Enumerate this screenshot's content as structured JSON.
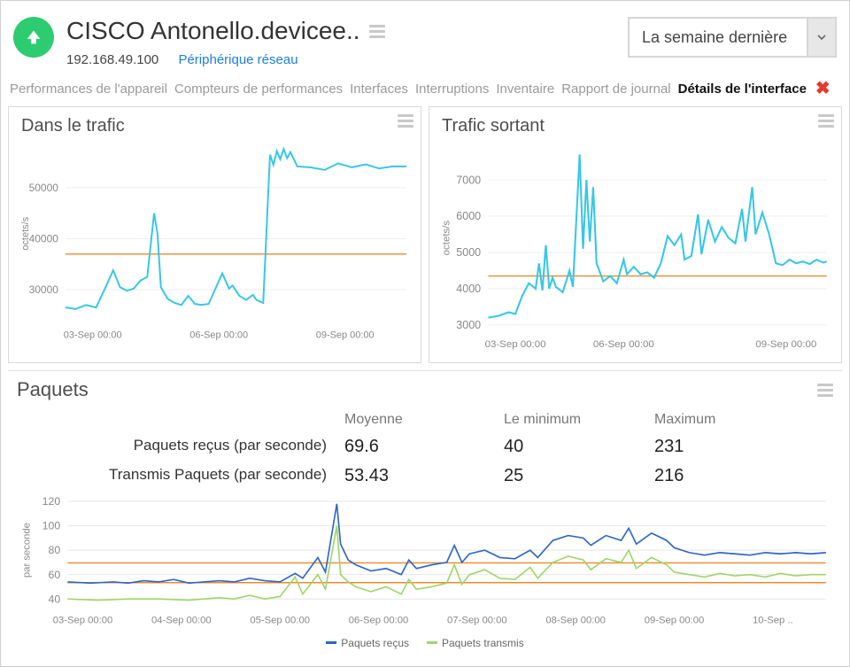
{
  "header": {
    "status_color": "#2ecc71",
    "arrow_color": "#ffffff",
    "title": "CISCO Antonello.devicee..",
    "ip": "192.168.49.100",
    "device_link": "Périphérique réseau",
    "range_selected": "La semaine dernière"
  },
  "tabs": {
    "items": [
      "Performances de l'appareil",
      "Compteurs de performances",
      "Interfaces",
      "Interruptions",
      "Inventaire",
      "Rapport de journal",
      "Détails de l'interface"
    ],
    "active_index": 6
  },
  "chart_in": {
    "type": "line",
    "title": "Dans le trafic",
    "ylabel": "octets/s",
    "line_color": "#38c7e6",
    "threshold_color": "#e88b2c",
    "background_color": "#ffffff",
    "grid_color": "#eeeeee",
    "axis_text_color": "#888888",
    "line_width": 2,
    "threshold_value": 37000,
    "ylim": [
      24000,
      58000
    ],
    "ytick_values": [
      30000,
      40000,
      50000
    ],
    "ytick_labels": [
      "30000",
      "40000",
      "50000"
    ],
    "xtick_positions": [
      0.08,
      0.45,
      0.82
    ],
    "xtick_labels": [
      "03-Sep 00:00",
      "06-Sep 00:00",
      "09-Sep 00:00"
    ],
    "series": [
      [
        0.0,
        26500
      ],
      [
        0.03,
        26200
      ],
      [
        0.06,
        27000
      ],
      [
        0.09,
        26500
      ],
      [
        0.12,
        30800
      ],
      [
        0.14,
        33800
      ],
      [
        0.16,
        30500
      ],
      [
        0.18,
        29800
      ],
      [
        0.2,
        30200
      ],
      [
        0.22,
        31800
      ],
      [
        0.24,
        32500
      ],
      [
        0.26,
        45000
      ],
      [
        0.27,
        41000
      ],
      [
        0.28,
        30500
      ],
      [
        0.3,
        28200
      ],
      [
        0.32,
        27400
      ],
      [
        0.34,
        27000
      ],
      [
        0.36,
        28800
      ],
      [
        0.38,
        27200
      ],
      [
        0.4,
        27000
      ],
      [
        0.42,
        27200
      ],
      [
        0.44,
        30200
      ],
      [
        0.46,
        33200
      ],
      [
        0.48,
        30200
      ],
      [
        0.49,
        30800
      ],
      [
        0.51,
        28800
      ],
      [
        0.53,
        28000
      ],
      [
        0.55,
        29000
      ],
      [
        0.56,
        28000
      ],
      [
        0.58,
        27400
      ],
      [
        0.6,
        56500
      ],
      [
        0.61,
        54500
      ],
      [
        0.62,
        57200
      ],
      [
        0.63,
        55600
      ],
      [
        0.64,
        57600
      ],
      [
        0.65,
        55800
      ],
      [
        0.66,
        57000
      ],
      [
        0.68,
        54200
      ],
      [
        0.72,
        54000
      ],
      [
        0.76,
        53500
      ],
      [
        0.8,
        54800
      ],
      [
        0.84,
        54000
      ],
      [
        0.88,
        54600
      ],
      [
        0.92,
        53800
      ],
      [
        0.96,
        54200
      ],
      [
        1.0,
        54200
      ]
    ]
  },
  "chart_out": {
    "type": "line",
    "title": "Trafic sortant",
    "ylabel": "octets/s",
    "line_color": "#38c7e6",
    "threshold_color": "#e88b2c",
    "background_color": "#ffffff",
    "grid_color": "#eeeeee",
    "axis_text_color": "#888888",
    "line_width": 2,
    "threshold_value": 4350,
    "ylim": [
      2900,
      7900
    ],
    "ytick_values": [
      3000,
      4000,
      5000,
      6000,
      7000
    ],
    "ytick_labels": [
      "3000",
      "4000",
      "5000",
      "6000",
      "7000"
    ],
    "xtick_positions": [
      0.08,
      0.4,
      0.88
    ],
    "xtick_labels": [
      "03-Sep 00:00",
      "06-Sep 00:00",
      "09-Sep 00:00"
    ],
    "series": [
      [
        0.0,
        3200
      ],
      [
        0.03,
        3250
      ],
      [
        0.06,
        3350
      ],
      [
        0.08,
        3300
      ],
      [
        0.1,
        3800
      ],
      [
        0.12,
        4150
      ],
      [
        0.14,
        4000
      ],
      [
        0.15,
        4700
      ],
      [
        0.16,
        3950
      ],
      [
        0.17,
        5200
      ],
      [
        0.18,
        4000
      ],
      [
        0.19,
        4300
      ],
      [
        0.2,
        4050
      ],
      [
        0.22,
        3900
      ],
      [
        0.24,
        4500
      ],
      [
        0.25,
        4050
      ],
      [
        0.27,
        7700
      ],
      [
        0.28,
        5100
      ],
      [
        0.29,
        7000
      ],
      [
        0.3,
        5300
      ],
      [
        0.31,
        6800
      ],
      [
        0.32,
        4700
      ],
      [
        0.34,
        4200
      ],
      [
        0.36,
        4350
      ],
      [
        0.38,
        4150
      ],
      [
        0.4,
        4800
      ],
      [
        0.41,
        4400
      ],
      [
        0.43,
        4600
      ],
      [
        0.45,
        4400
      ],
      [
        0.47,
        4450
      ],
      [
        0.49,
        4300
      ],
      [
        0.51,
        4700
      ],
      [
        0.53,
        5450
      ],
      [
        0.55,
        5200
      ],
      [
        0.57,
        5500
      ],
      [
        0.58,
        4800
      ],
      [
        0.6,
        4900
      ],
      [
        0.62,
        6050
      ],
      [
        0.63,
        4950
      ],
      [
        0.65,
        5900
      ],
      [
        0.67,
        5300
      ],
      [
        0.69,
        5700
      ],
      [
        0.71,
        5400
      ],
      [
        0.73,
        5250
      ],
      [
        0.75,
        6200
      ],
      [
        0.76,
        5300
      ],
      [
        0.78,
        6800
      ],
      [
        0.79,
        5500
      ],
      [
        0.81,
        6100
      ],
      [
        0.83,
        5500
      ],
      [
        0.85,
        4700
      ],
      [
        0.87,
        4650
      ],
      [
        0.89,
        4800
      ],
      [
        0.91,
        4700
      ],
      [
        0.93,
        4750
      ],
      [
        0.95,
        4680
      ],
      [
        0.97,
        4800
      ],
      [
        0.99,
        4720
      ],
      [
        1.0,
        4750
      ]
    ]
  },
  "packets": {
    "title": "Paquets",
    "columns": [
      "Moyenne",
      "Le minimum",
      "Maximum"
    ],
    "rows": [
      {
        "label": "Paquets reçus (par seconde)",
        "values": [
          "69.6",
          "40",
          "231"
        ]
      },
      {
        "label": "Transmis Paquets (par seconde)",
        "values": [
          "53.43",
          "25",
          "216"
        ]
      }
    ],
    "chart": {
      "type": "line",
      "ylabel": "par seconde",
      "line_width": 1.6,
      "background_color": "#ffffff",
      "grid_color": "#e6e6e6",
      "axis_text_color": "#888888",
      "threshold_color": "#e88b2c",
      "thresholds": [
        69.6,
        53.4
      ],
      "ylim": [
        35,
        125
      ],
      "ytick_values": [
        40,
        60,
        80,
        100,
        120
      ],
      "ytick_labels": [
        "40",
        "60",
        "80",
        "100",
        "120"
      ],
      "xtick_positions": [
        0.02,
        0.15,
        0.28,
        0.41,
        0.54,
        0.67,
        0.8,
        0.93
      ],
      "xtick_labels": [
        "03-Sep 00:00",
        "04-Sep 00:00",
        "05-Sep 00:00",
        "06-Sep 00:00",
        "07-Sep 00:00",
        "08-Sep 00:00",
        "09-Sep 00:00",
        "10-Sep .."
      ],
      "series_recv": {
        "color": "#2e66c6",
        "legend": "Paquets reçus",
        "points": [
          [
            0.0,
            54
          ],
          [
            0.03,
            53
          ],
          [
            0.06,
            54
          ],
          [
            0.08,
            53
          ],
          [
            0.1,
            55
          ],
          [
            0.12,
            54
          ],
          [
            0.14,
            56
          ],
          [
            0.16,
            53
          ],
          [
            0.18,
            54
          ],
          [
            0.2,
            55
          ],
          [
            0.22,
            54
          ],
          [
            0.24,
            57
          ],
          [
            0.26,
            55
          ],
          [
            0.28,
            54
          ],
          [
            0.3,
            61
          ],
          [
            0.31,
            57
          ],
          [
            0.33,
            74
          ],
          [
            0.34,
            62
          ],
          [
            0.355,
            118
          ],
          [
            0.36,
            85
          ],
          [
            0.37,
            72
          ],
          [
            0.38,
            68
          ],
          [
            0.4,
            63
          ],
          [
            0.42,
            65
          ],
          [
            0.44,
            60
          ],
          [
            0.45,
            72
          ],
          [
            0.46,
            65
          ],
          [
            0.48,
            68
          ],
          [
            0.5,
            70
          ],
          [
            0.51,
            84
          ],
          [
            0.52,
            70
          ],
          [
            0.53,
            77
          ],
          [
            0.55,
            80
          ],
          [
            0.57,
            74
          ],
          [
            0.59,
            73
          ],
          [
            0.61,
            80
          ],
          [
            0.62,
            74
          ],
          [
            0.64,
            88
          ],
          [
            0.66,
            92
          ],
          [
            0.68,
            90
          ],
          [
            0.69,
            84
          ],
          [
            0.71,
            92
          ],
          [
            0.73,
            88
          ],
          [
            0.74,
            98
          ],
          [
            0.75,
            85
          ],
          [
            0.77,
            94
          ],
          [
            0.79,
            88
          ],
          [
            0.8,
            82
          ],
          [
            0.82,
            78
          ],
          [
            0.84,
            76
          ],
          [
            0.86,
            78
          ],
          [
            0.88,
            77
          ],
          [
            0.9,
            76
          ],
          [
            0.92,
            78
          ],
          [
            0.94,
            77
          ],
          [
            0.96,
            78
          ],
          [
            0.98,
            77
          ],
          [
            1.0,
            78
          ]
        ]
      },
      "series_trans": {
        "color": "#9fd66a",
        "legend": "Paquets transmis",
        "points": [
          [
            0.0,
            40
          ],
          [
            0.04,
            39
          ],
          [
            0.08,
            40
          ],
          [
            0.12,
            40
          ],
          [
            0.16,
            39
          ],
          [
            0.2,
            41
          ],
          [
            0.22,
            40
          ],
          [
            0.24,
            43
          ],
          [
            0.26,
            40
          ],
          [
            0.28,
            42
          ],
          [
            0.3,
            58
          ],
          [
            0.31,
            44
          ],
          [
            0.33,
            60
          ],
          [
            0.34,
            48
          ],
          [
            0.355,
            100
          ],
          [
            0.36,
            60
          ],
          [
            0.37,
            54
          ],
          [
            0.38,
            50
          ],
          [
            0.4,
            46
          ],
          [
            0.42,
            50
          ],
          [
            0.44,
            44
          ],
          [
            0.45,
            56
          ],
          [
            0.46,
            48
          ],
          [
            0.48,
            50
          ],
          [
            0.5,
            53
          ],
          [
            0.51,
            68
          ],
          [
            0.52,
            52
          ],
          [
            0.53,
            60
          ],
          [
            0.55,
            64
          ],
          [
            0.57,
            57
          ],
          [
            0.59,
            56
          ],
          [
            0.61,
            66
          ],
          [
            0.62,
            57
          ],
          [
            0.64,
            70
          ],
          [
            0.66,
            75
          ],
          [
            0.68,
            72
          ],
          [
            0.69,
            64
          ],
          [
            0.71,
            73
          ],
          [
            0.73,
            70
          ],
          [
            0.74,
            80
          ],
          [
            0.75,
            65
          ],
          [
            0.77,
            74
          ],
          [
            0.79,
            68
          ],
          [
            0.8,
            62
          ],
          [
            0.82,
            60
          ],
          [
            0.84,
            58
          ],
          [
            0.86,
            61
          ],
          [
            0.88,
            59
          ],
          [
            0.9,
            60
          ],
          [
            0.92,
            58
          ],
          [
            0.94,
            61
          ],
          [
            0.96,
            59
          ],
          [
            0.98,
            60
          ],
          [
            1.0,
            60
          ]
        ]
      }
    }
  }
}
